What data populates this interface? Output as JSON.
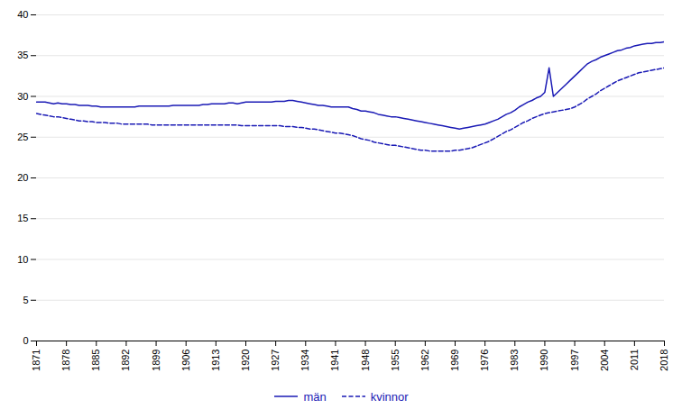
{
  "chart_data": {
    "type": "line",
    "x": [
      1871,
      1872,
      1873,
      1874,
      1875,
      1876,
      1877,
      1878,
      1879,
      1880,
      1881,
      1882,
      1883,
      1884,
      1885,
      1886,
      1887,
      1888,
      1889,
      1890,
      1891,
      1892,
      1893,
      1894,
      1895,
      1896,
      1897,
      1898,
      1899,
      1900,
      1901,
      1902,
      1903,
      1904,
      1905,
      1906,
      1907,
      1908,
      1909,
      1910,
      1911,
      1912,
      1913,
      1914,
      1915,
      1916,
      1917,
      1918,
      1919,
      1920,
      1921,
      1922,
      1923,
      1924,
      1925,
      1926,
      1927,
      1928,
      1929,
      1930,
      1931,
      1932,
      1933,
      1934,
      1935,
      1936,
      1937,
      1938,
      1939,
      1940,
      1941,
      1942,
      1943,
      1944,
      1945,
      1946,
      1947,
      1948,
      1949,
      1950,
      1951,
      1952,
      1953,
      1954,
      1955,
      1956,
      1957,
      1958,
      1959,
      1960,
      1961,
      1962,
      1963,
      1964,
      1965,
      1966,
      1967,
      1968,
      1969,
      1970,
      1971,
      1972,
      1973,
      1974,
      1975,
      1976,
      1977,
      1978,
      1979,
      1980,
      1981,
      1982,
      1983,
      1984,
      1985,
      1986,
      1987,
      1988,
      1989,
      1990,
      1991,
      1992,
      1993,
      1994,
      1995,
      1996,
      1997,
      1998,
      1999,
      2000,
      2001,
      2002,
      2003,
      2004,
      2005,
      2006,
      2007,
      2008,
      2009,
      2010,
      2011,
      2012,
      2013,
      2014,
      2015,
      2016,
      2017,
      2018
    ],
    "series": [
      {
        "name": "män",
        "color": "#1a1ab5",
        "line_style": "solid",
        "values": [
          29.3,
          29.3,
          29.3,
          29.2,
          29.1,
          29.2,
          29.1,
          29.1,
          29.0,
          29.0,
          28.9,
          28.9,
          28.9,
          28.8,
          28.8,
          28.7,
          28.7,
          28.7,
          28.7,
          28.7,
          28.7,
          28.7,
          28.7,
          28.7,
          28.8,
          28.8,
          28.8,
          28.8,
          28.8,
          28.8,
          28.8,
          28.8,
          28.9,
          28.9,
          28.9,
          28.9,
          28.9,
          28.9,
          28.9,
          29.0,
          29.0,
          29.1,
          29.1,
          29.1,
          29.1,
          29.2,
          29.2,
          29.1,
          29.2,
          29.3,
          29.3,
          29.3,
          29.3,
          29.3,
          29.3,
          29.3,
          29.4,
          29.4,
          29.4,
          29.5,
          29.5,
          29.4,
          29.3,
          29.2,
          29.1,
          29.0,
          28.9,
          28.9,
          28.8,
          28.7,
          28.7,
          28.7,
          28.7,
          28.7,
          28.5,
          28.4,
          28.2,
          28.2,
          28.1,
          28.0,
          27.8,
          27.7,
          27.6,
          27.5,
          27.5,
          27.4,
          27.3,
          27.2,
          27.1,
          27.0,
          26.9,
          26.8,
          26.7,
          26.6,
          26.5,
          26.4,
          26.3,
          26.2,
          26.1,
          26.0,
          26.1,
          26.2,
          26.3,
          26.4,
          26.5,
          26.6,
          26.8,
          27.0,
          27.2,
          27.5,
          27.8,
          28.0,
          28.3,
          28.7,
          29.0,
          29.3,
          29.5,
          29.8,
          30.0,
          30.5,
          33.5,
          30.0,
          30.5,
          31.0,
          31.5,
          32.0,
          32.5,
          33.0,
          33.5,
          34.0,
          34.3,
          34.5,
          34.8,
          35.0,
          35.2,
          35.4,
          35.6,
          35.7,
          35.9,
          36.0,
          36.2,
          36.3,
          36.4,
          36.5,
          36.5,
          36.6,
          36.6,
          36.7
        ]
      },
      {
        "name": "kvinnor",
        "color": "#1a1ab5",
        "line_style": "dashed",
        "values": [
          27.9,
          27.8,
          27.7,
          27.6,
          27.5,
          27.5,
          27.4,
          27.3,
          27.2,
          27.1,
          27.0,
          27.0,
          26.9,
          26.9,
          26.8,
          26.8,
          26.8,
          26.7,
          26.7,
          26.7,
          26.6,
          26.6,
          26.6,
          26.6,
          26.6,
          26.6,
          26.6,
          26.5,
          26.5,
          26.5,
          26.5,
          26.5,
          26.5,
          26.5,
          26.5,
          26.5,
          26.5,
          26.5,
          26.5,
          26.5,
          26.5,
          26.5,
          26.5,
          26.5,
          26.5,
          26.5,
          26.5,
          26.5,
          26.4,
          26.4,
          26.4,
          26.4,
          26.4,
          26.4,
          26.4,
          26.4,
          26.4,
          26.4,
          26.3,
          26.3,
          26.3,
          26.2,
          26.2,
          26.1,
          26.0,
          26.0,
          25.9,
          25.8,
          25.7,
          25.6,
          25.5,
          25.5,
          25.4,
          25.3,
          25.2,
          25.0,
          24.8,
          24.7,
          24.6,
          24.4,
          24.3,
          24.2,
          24.1,
          24.0,
          24.0,
          23.9,
          23.8,
          23.7,
          23.6,
          23.5,
          23.4,
          23.4,
          23.3,
          23.3,
          23.3,
          23.3,
          23.3,
          23.3,
          23.4,
          23.4,
          23.5,
          23.6,
          23.7,
          23.9,
          24.1,
          24.3,
          24.5,
          24.8,
          25.1,
          25.4,
          25.7,
          25.9,
          26.2,
          26.5,
          26.8,
          27.0,
          27.3,
          27.5,
          27.7,
          27.9,
          28.0,
          28.1,
          28.2,
          28.3,
          28.4,
          28.5,
          28.7,
          29.0,
          29.3,
          29.7,
          30.0,
          30.3,
          30.7,
          31.0,
          31.3,
          31.6,
          31.9,
          32.1,
          32.3,
          32.5,
          32.7,
          32.9,
          33.0,
          33.1,
          33.2,
          33.3,
          33.4,
          33.5
        ]
      }
    ],
    "xlim": [
      1871,
      2018
    ],
    "xticks": [
      1871,
      1878,
      1885,
      1892,
      1899,
      1906,
      1913,
      1920,
      1927,
      1934,
      1941,
      1948,
      1955,
      1962,
      1969,
      1976,
      1983,
      1990,
      1997,
      2004,
      2011,
      2018
    ],
    "ylim": [
      0,
      40
    ],
    "yticks": [
      0,
      5,
      10,
      15,
      20,
      25,
      30,
      35,
      40
    ],
    "grid": true,
    "legend": "bottom"
  }
}
